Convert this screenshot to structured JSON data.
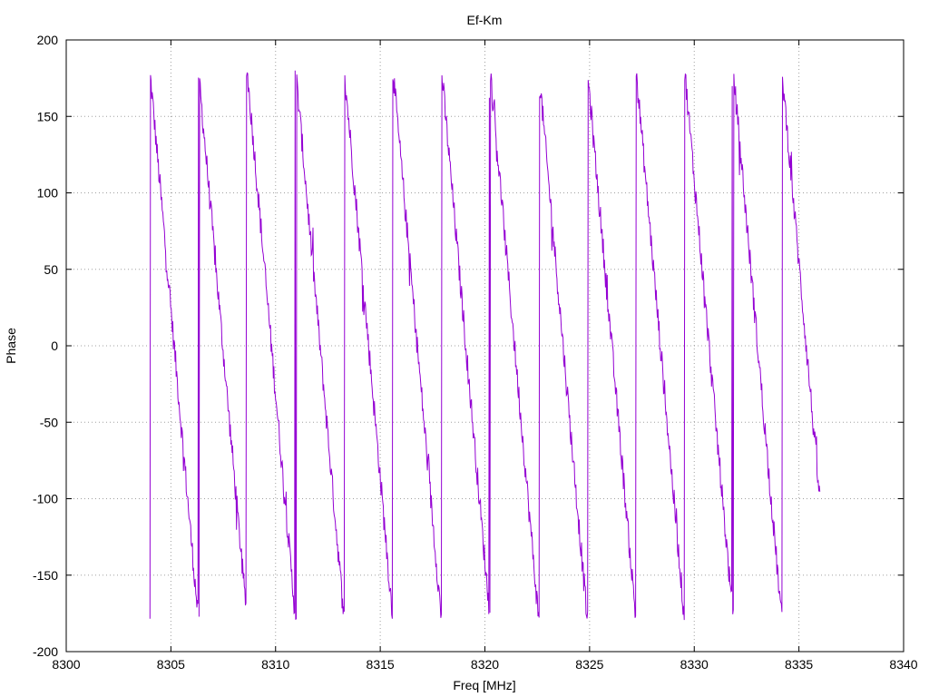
{
  "chart_data": {
    "type": "line",
    "title": "Ef-Km",
    "xlabel": "Freq [MHz]",
    "ylabel": "Phase",
    "xlim": [
      8300,
      8340
    ],
    "ylim": [
      -200,
      200
    ],
    "xticks": [
      8300,
      8305,
      8310,
      8315,
      8320,
      8325,
      8330,
      8335,
      8340
    ],
    "yticks": [
      -200,
      -150,
      -100,
      -50,
      0,
      50,
      100,
      150,
      200
    ],
    "grid": true,
    "series_color": "#9400d3",
    "series": [
      {
        "x_start": 8304.0,
        "x_end": 8336.0,
        "phase_slope_deg_per_mhz": -155,
        "phase_at_start_deg": 179,
        "noise_deg": 8,
        "wraps": "phase wraps between -180 and 180"
      }
    ]
  }
}
